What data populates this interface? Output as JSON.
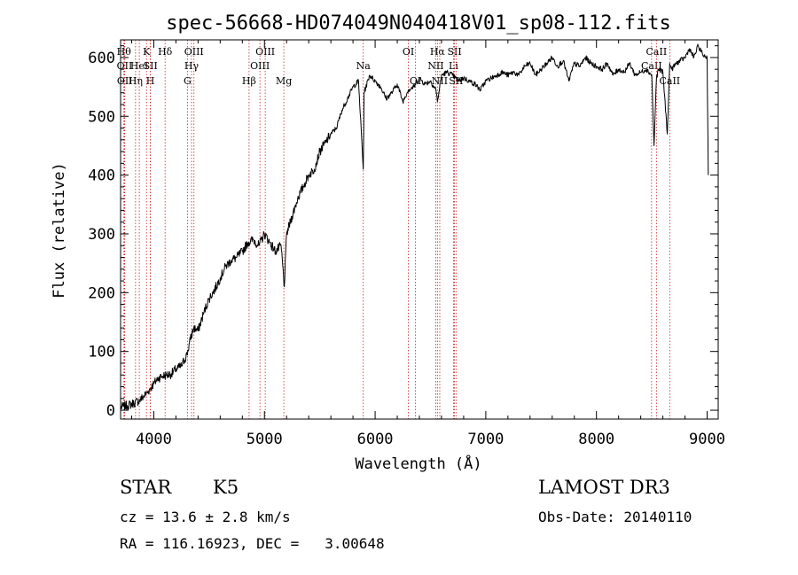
{
  "chart_data": {
    "type": "line",
    "title": "spec-56668-HD074049N040418V01_sp08-112.fits",
    "xlabel": "Wavelength (Å)",
    "ylabel": "Flux (relative)",
    "xlim": [
      3700,
      9100
    ],
    "ylim": [
      -15,
      630
    ],
    "xticks": [
      4000,
      5000,
      6000,
      7000,
      8000,
      9000
    ],
    "yticks": [
      0,
      100,
      200,
      300,
      400,
      500,
      600
    ],
    "x_tick_labels": [
      "4000",
      "5000",
      "6000",
      "7000",
      "8000",
      "9000"
    ],
    "y_tick_labels": [
      "0",
      "100",
      "200",
      "300",
      "400",
      "500",
      "600"
    ],
    "series": [
      {
        "name": "spectrum",
        "x": [
          3700,
          3760,
          3820,
          3880,
          3940,
          4000,
          4040,
          4080,
          4120,
          4160,
          4200,
          4250,
          4300,
          4330,
          4360,
          4400,
          4450,
          4500,
          4550,
          4600,
          4650,
          4700,
          4750,
          4800,
          4850,
          4900,
          4950,
          5000,
          5050,
          5100,
          5150,
          5180,
          5200,
          5250,
          5300,
          5350,
          5400,
          5450,
          5500,
          5550,
          5600,
          5650,
          5700,
          5750,
          5800,
          5850,
          5893,
          5900,
          5950,
          6000,
          6050,
          6100,
          6150,
          6200,
          6250,
          6300,
          6350,
          6400,
          6450,
          6500,
          6550,
          6563,
          6600,
          6650,
          6700,
          6750,
          6800,
          6850,
          6900,
          6950,
          7000,
          7050,
          7100,
          7150,
          7200,
          7250,
          7300,
          7350,
          7400,
          7450,
          7500,
          7550,
          7600,
          7650,
          7700,
          7750,
          7800,
          7850,
          7900,
          7950,
          8000,
          8050,
          8100,
          8150,
          8200,
          8250,
          8300,
          8350,
          8400,
          8450,
          8500,
          8520,
          8542,
          8560,
          8600,
          8640,
          8662,
          8680,
          8720,
          8760,
          8800,
          8840,
          8880,
          8920,
          8960,
          9000,
          9010
        ],
        "y": [
          5,
          8,
          12,
          18,
          30,
          45,
          55,
          58,
          60,
          62,
          70,
          75,
          95,
          120,
          140,
          135,
          165,
          190,
          205,
          225,
          245,
          255,
          260,
          270,
          285,
          290,
          280,
          300,
          285,
          270,
          280,
          210,
          300,
          330,
          360,
          380,
          400,
          410,
          440,
          455,
          470,
          480,
          510,
          530,
          550,
          560,
          410,
          540,
          570,
          560,
          550,
          530,
          540,
          555,
          525,
          545,
          550,
          565,
          555,
          560,
          545,
          525,
          570,
          575,
          570,
          560,
          565,
          560,
          555,
          545,
          560,
          565,
          570,
          575,
          570,
          575,
          570,
          585,
          590,
          570,
          580,
          590,
          600,
          585,
          595,
          560,
          590,
          585,
          600,
          590,
          585,
          580,
          590,
          570,
          580,
          575,
          590,
          570,
          575,
          580,
          570,
          450,
          565,
          580,
          575,
          470,
          590,
          580,
          590,
          595,
          600,
          615,
          600,
          620,
          605,
          600,
          400
        ]
      }
    ],
    "lines": [
      {
        "wavelength": 3730,
        "label": "Hθ",
        "row": 0
      },
      {
        "wavelength": 3736,
        "label": "OII",
        "row": 1
      },
      {
        "wavelength": 3738,
        "label": "OII",
        "row": 2
      },
      {
        "wavelength": 3835,
        "label": "Hη",
        "row": 2
      },
      {
        "wavelength": 3869,
        "label": "HeI",
        "row": 1
      },
      {
        "wavelength": 3934,
        "label": "K",
        "row": 0
      },
      {
        "wavelength": 3969,
        "label": "H",
        "row": 2
      },
      {
        "wavelength": 3970,
        "label": "SII",
        "row": 1
      },
      {
        "wavelength": 4102,
        "label": "Hδ",
        "row": 0
      },
      {
        "wavelength": 4304,
        "label": "G",
        "row": 2
      },
      {
        "wavelength": 4341,
        "label": "Hγ",
        "row": 1
      },
      {
        "wavelength": 4363,
        "label": "OIII",
        "row": 0
      },
      {
        "wavelength": 4861,
        "label": "Hβ",
        "row": 2
      },
      {
        "wavelength": 4959,
        "label": "OIII",
        "row": 1
      },
      {
        "wavelength": 5007,
        "label": "OIII",
        "row": 0
      },
      {
        "wavelength": 5175,
        "label": "Mg",
        "row": 2
      },
      {
        "wavelength": 5893,
        "label": "Na",
        "row": 1
      },
      {
        "wavelength": 6300,
        "label": "OI",
        "row": 0
      },
      {
        "wavelength": 6364,
        "label": "OI",
        "row": 2
      },
      {
        "wavelength": 6548,
        "label": "NII",
        "row": 1
      },
      {
        "wavelength": 6563,
        "label": "Hα",
        "row": 0
      },
      {
        "wavelength": 6584,
        "label": "NII",
        "row": 2
      },
      {
        "wavelength": 6708,
        "label": "Li",
        "row": 1
      },
      {
        "wavelength": 6717,
        "label": "SII",
        "row": 0
      },
      {
        "wavelength": 6731,
        "label": "SII",
        "row": 2
      },
      {
        "wavelength": 8498,
        "label": "CaII",
        "row": 1
      },
      {
        "wavelength": 8542,
        "label": "CaII",
        "row": 0
      },
      {
        "wavelength": 8662,
        "label": "CaII",
        "row": 2
      }
    ]
  },
  "info": {
    "class": "STAR",
    "subclass": "K5",
    "survey": "LAMOST DR3",
    "cz": "cz = 13.6 ± 2.8 km/s",
    "obs_date": "Obs-Date: 20140110",
    "coords": "RA = 116.16923, DEC =   3.00648"
  }
}
